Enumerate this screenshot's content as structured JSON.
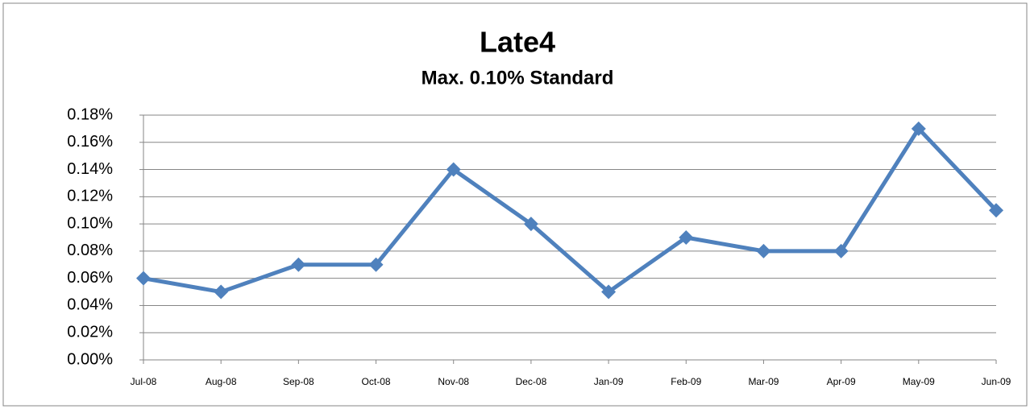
{
  "chart_data": {
    "type": "line",
    "title": "Late4",
    "subtitle": "Max. 0.10% Standard",
    "categories": [
      "Jul-08",
      "Aug-08",
      "Sep-08",
      "Oct-08",
      "Nov-08",
      "Dec-08",
      "Jan-09",
      "Feb-09",
      "Mar-09",
      "Apr-09",
      "May-09",
      "Jun-09"
    ],
    "series": [
      {
        "name": "Late4",
        "color": "#4f81bd",
        "values": [
          0.06,
          0.05,
          0.07,
          0.07,
          0.14,
          0.1,
          0.05,
          0.09,
          0.08,
          0.08,
          0.17,
          0.11
        ]
      }
    ],
    "ylim": [
      0,
      0.18
    ],
    "yticks": [
      {
        "value": 0,
        "label": "0.00%"
      },
      {
        "value": 0.02,
        "label": "0.02%"
      },
      {
        "value": 0.04,
        "label": "0.04%"
      },
      {
        "value": 0.06,
        "label": "0.06%"
      },
      {
        "value": 0.08,
        "label": "0.08%"
      },
      {
        "value": 0.1,
        "label": "0.10%"
      },
      {
        "value": 0.12,
        "label": "0.12%"
      },
      {
        "value": 0.14,
        "label": "0.14%"
      },
      {
        "value": 0.16,
        "label": "0.16%"
      },
      {
        "value": 0.18,
        "label": "0.18%"
      }
    ],
    "grid": true
  }
}
